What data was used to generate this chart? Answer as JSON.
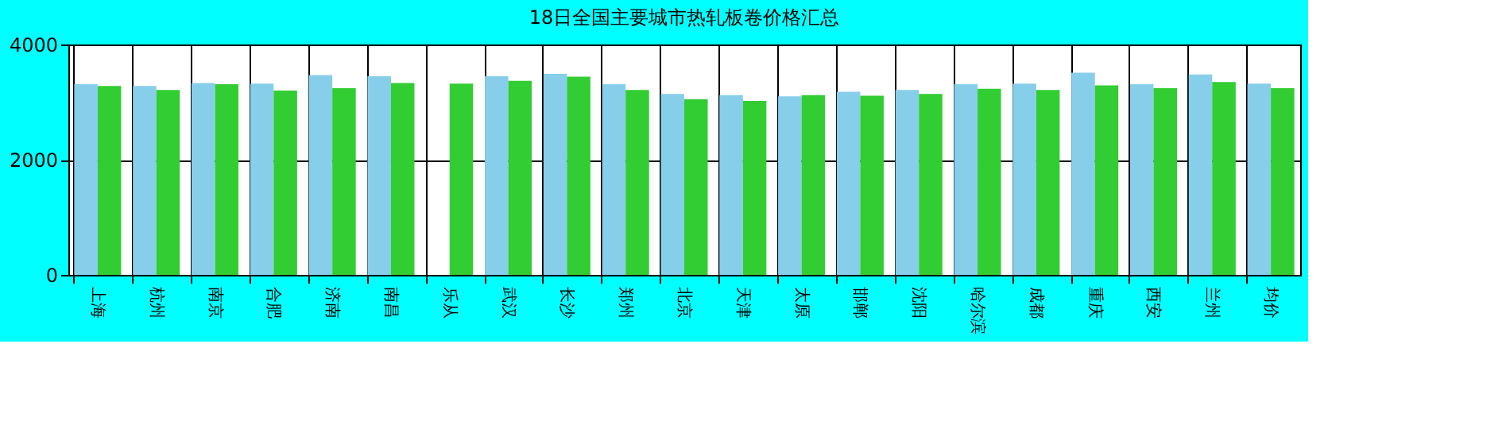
{
  "chart_data": {
    "type": "bar",
    "title": "18日全国主要城市热轧板卷价格汇总",
    "categories": [
      "上海",
      "杭州",
      "南京",
      "合肥",
      "济南",
      "南昌",
      "乐从",
      "武汉",
      "长沙",
      "郑州",
      "北京",
      "天津",
      "太原",
      "邯郸",
      "沈阳",
      "哈尔滨",
      "成都",
      "重庆",
      "西安",
      "兰州",
      "均价"
    ],
    "series": [
      {
        "color": "#87ceeb",
        "values": [
          3310,
          3280,
          3330,
          3320,
          3470,
          3450,
          null,
          3450,
          3490,
          3310,
          3140,
          3120,
          3100,
          3180,
          3210,
          3310,
          3320,
          3510,
          3310,
          3480,
          3320
        ]
      },
      {
        "color": "#32cd32",
        "values": [
          3280,
          3210,
          3310,
          3200,
          3240,
          3330,
          3320,
          3370,
          3440,
          3210,
          3050,
          3020,
          3120,
          3110,
          3140,
          3230,
          3210,
          3290,
          3240,
          3350,
          3240
        ]
      }
    ],
    "ylim": [
      0,
      4000
    ],
    "yticks": [
      0,
      2000,
      4000
    ],
    "grid": true,
    "legend": false
  }
}
